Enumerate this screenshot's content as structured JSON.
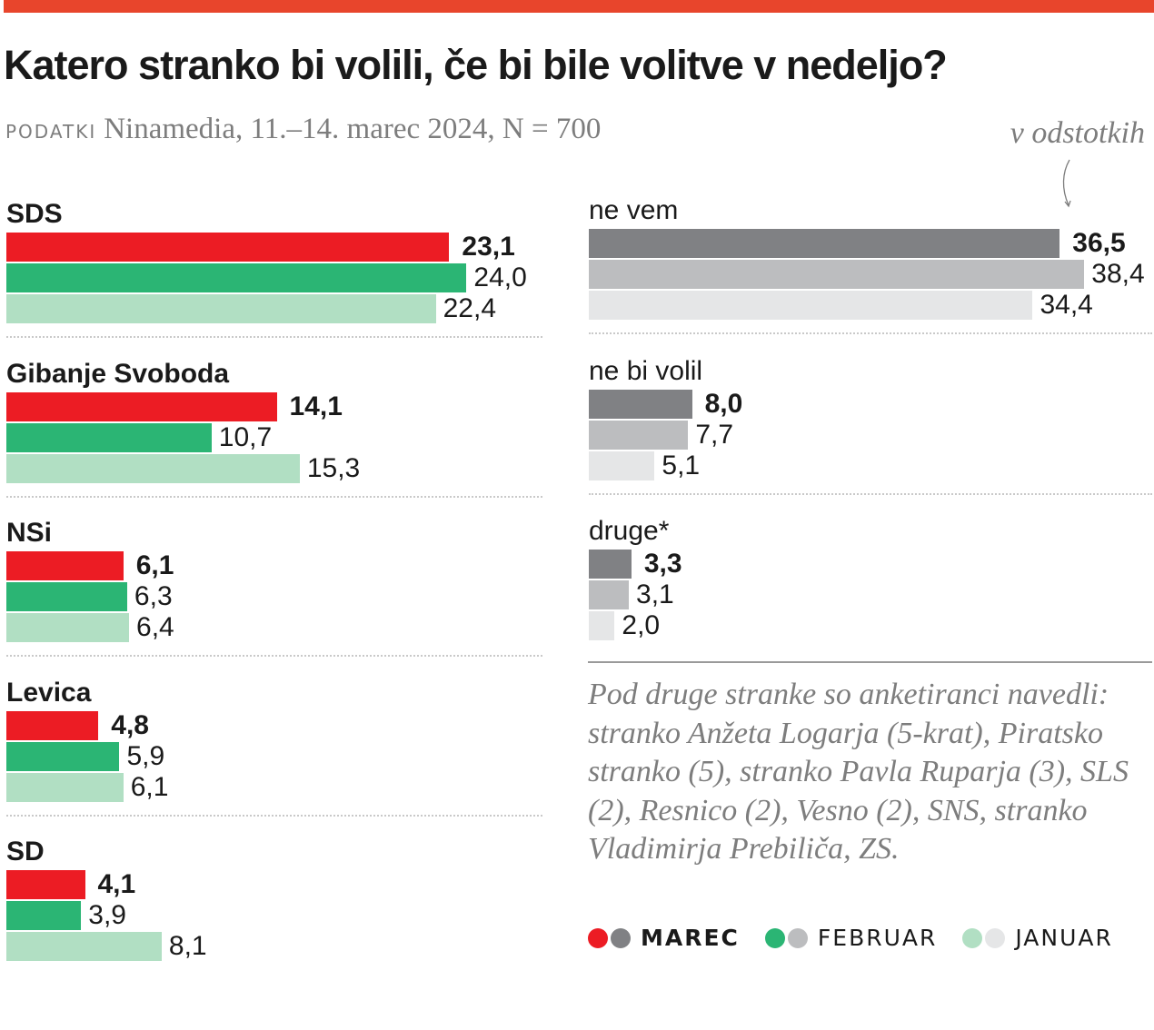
{
  "header": {
    "title": "Katero stranko bi volili, če bi bile volitve v nedeljo?",
    "source_label": "PODATKI",
    "source_text": "Ninamedia, 11.–14. marec 2024, N = 700",
    "unit_note": "v odstotkih"
  },
  "colors": {
    "topbar": "#e8452c",
    "marec": "#ec1c24",
    "februar": "#2bb574",
    "januar": "#b1dfc3",
    "marec_grey": "#808184",
    "februar_grey": "#bcbdbf",
    "januar_grey": "#e5e6e7"
  },
  "chart_data": [
    {
      "type": "bar",
      "orientation": "horizontal",
      "title": "Katero stranko bi volili, če bi bile volitve v nedeljo?",
      "unit": "v odstotkih",
      "categories": [
        "SDS",
        "Gibanje Svoboda",
        "NSi",
        "Levica",
        "SD"
      ],
      "series": [
        {
          "name": "MAREC",
          "values": [
            23.1,
            14.1,
            6.1,
            4.8,
            4.1
          ],
          "labels": [
            "23,1",
            "14,1",
            "6,1",
            "4,8",
            "4,1"
          ]
        },
        {
          "name": "FEBRUAR",
          "values": [
            24.0,
            10.7,
            6.3,
            5.9,
            3.9
          ],
          "labels": [
            "24,0",
            "10,7",
            "6,3",
            "5,9",
            "3,9"
          ]
        },
        {
          "name": "JANUAR",
          "values": [
            22.4,
            15.3,
            6.4,
            6.1,
            8.1
          ],
          "labels": [
            "22,4",
            "15,3",
            "6,4",
            "6,1",
            "8,1"
          ]
        }
      ]
    },
    {
      "type": "bar",
      "orientation": "horizontal",
      "unit": "v odstotkih",
      "categories": [
        "ne vem",
        "ne bi volil",
        "druge*"
      ],
      "series": [
        {
          "name": "MAREC",
          "values": [
            36.5,
            8.0,
            3.3
          ],
          "labels": [
            "36,5",
            "8,0",
            "3,3"
          ]
        },
        {
          "name": "FEBRUAR",
          "values": [
            38.4,
            7.7,
            3.1
          ],
          "labels": [
            "38,4",
            "7,7",
            "3,1"
          ]
        },
        {
          "name": "JANUAR",
          "values": [
            34.4,
            5.1,
            2.0
          ],
          "labels": [
            "34,4",
            "5,1",
            "2,0"
          ]
        }
      ]
    }
  ],
  "footnote": "Pod druge stranke so anketiranci navedli: stranko Anžeta Logarja (5-krat), Piratsko stranko (5), stranko Pavla Ruparja (3), SLS (2), Resnico (2), Vesno (2), SNS, stranko Vladimirja Prebiliča, ZS.",
  "legend": [
    {
      "label": "MAREC",
      "bold": true
    },
    {
      "label": "FEBRUAR",
      "bold": false
    },
    {
      "label": "JANUAR",
      "bold": false
    }
  ]
}
